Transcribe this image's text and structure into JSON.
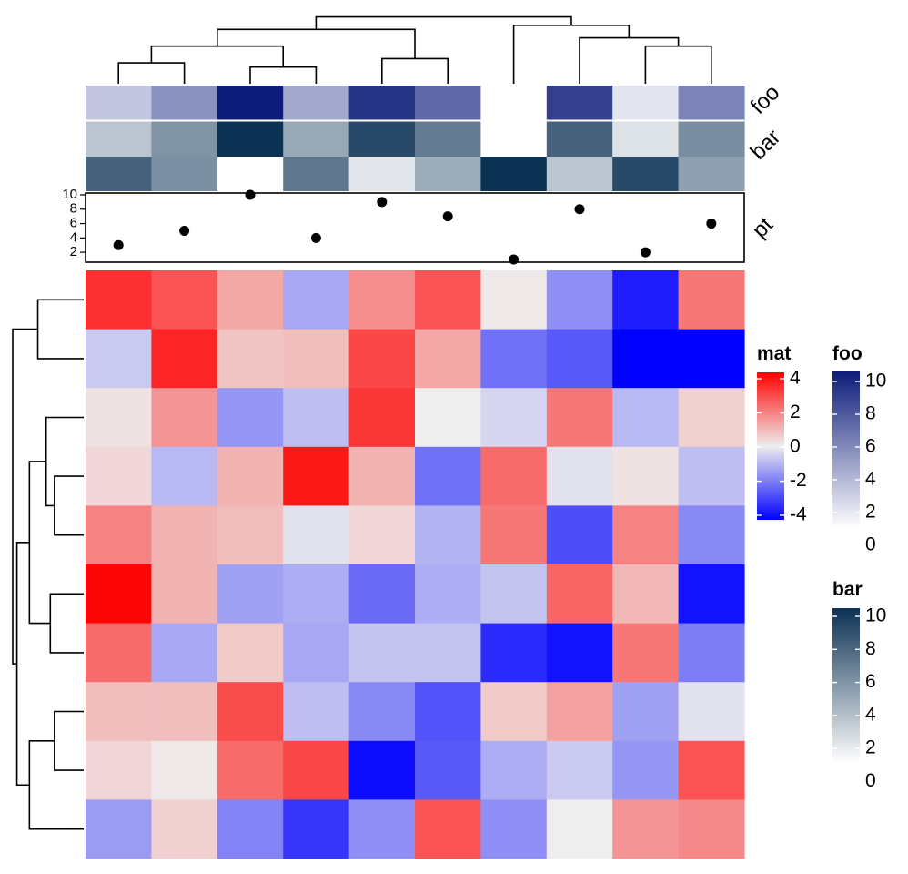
{
  "chart_data": {
    "type": "heatmap",
    "title": "",
    "xlabel": "",
    "ylabel": "",
    "rows": 10,
    "cols": 10,
    "colors": {
      "mat_low": "#0000FF",
      "mat_mid": "#EEEEEE",
      "mat_high": "#FF0000",
      "foo_high": "#0D1C7A",
      "bar_high": "#0B3153",
      "annotation_low": "#FFFFFF"
    },
    "mat_values": [
      [
        3.2,
        2.6,
        1.2,
        -1.2,
        1.6,
        2.6,
        0.1,
        -1.6,
        -3.5,
        2.0
      ],
      [
        -0.6,
        3.4,
        0.7,
        0.8,
        2.8,
        1.2,
        -2.1,
        -2.5,
        -4.0,
        -4.0
      ],
      [
        0.2,
        1.5,
        -1.5,
        -0.8,
        3.1,
        0.0,
        -0.4,
        2.0,
        -0.9,
        0.5
      ],
      [
        0.4,
        -0.9,
        1.0,
        3.6,
        1.0,
        -2.1,
        2.2,
        -0.2,
        0.2,
        -0.8
      ],
      [
        1.8,
        1.0,
        0.8,
        -0.2,
        0.4,
        -1.0,
        2.0,
        -2.7,
        1.8,
        -1.7
      ],
      [
        3.9,
        1.0,
        -1.3,
        -1.1,
        -2.2,
        -1.1,
        -0.7,
        2.3,
        0.9,
        -3.7
      ],
      [
        2.2,
        -1.2,
        0.6,
        -1.2,
        -0.7,
        -0.7,
        -3.3,
        -3.7,
        2.0,
        -1.9
      ],
      [
        0.8,
        0.8,
        2.7,
        -0.8,
        -1.7,
        -2.6,
        0.6,
        1.3,
        -1.3,
        -0.2
      ],
      [
        0.4,
        0.1,
        2.2,
        2.8,
        -3.8,
        -2.5,
        -1.1,
        -0.6,
        -1.5,
        2.6
      ],
      [
        -1.4,
        0.5,
        -1.8,
        -3.1,
        -1.6,
        2.6,
        -1.6,
        0.0,
        1.5,
        1.7
      ]
    ],
    "annotations": {
      "foo": {
        "label": "foo",
        "values": [
          2.5,
          4.8,
          10.0,
          3.8,
          9.0,
          6.6,
          0.0,
          8.4,
          1.2,
          5.4
        ]
      },
      "bar": {
        "label": "bar",
        "values": [
          2.8,
          5.2,
          10.0,
          4.2,
          8.8,
          6.4,
          0.0,
          7.6,
          1.4,
          5.5
        ]
      },
      "bar_row2": [
        7.6,
        5.4,
        0.0,
        6.6,
        1.2,
        4.0,
        10.0,
        2.8,
        8.8,
        4.6
      ],
      "pt": {
        "label": "pt",
        "values": [
          3,
          5,
          10,
          4,
          9,
          7,
          1,
          8,
          2,
          6
        ],
        "ticks": [
          "2",
          "4",
          "6",
          "8",
          "10"
        ],
        "ylim": [
          1,
          10
        ]
      }
    },
    "legends": {
      "mat": {
        "title": "mat",
        "ticks": [
          "4",
          "2",
          "0",
          "-2",
          "-4"
        ]
      },
      "foo": {
        "title": "foo",
        "ticks": [
          "10",
          "8",
          "6",
          "4",
          "2",
          "0"
        ]
      },
      "bar": {
        "title": "bar",
        "ticks": [
          "10",
          "8",
          "6",
          "4",
          "2",
          "0"
        ]
      }
    },
    "column_dendrogram": [
      {
        "a": 0,
        "b": 1,
        "hl": 0,
        "hr": 0,
        "h": 25
      },
      {
        "a": 2,
        "b": 3,
        "hl": 0,
        "hr": 0,
        "h": 20
      },
      {
        "a": 0.5,
        "b": 2.5,
        "hl": 25,
        "hr": 20,
        "h": 45
      },
      {
        "a": 4,
        "b": 5,
        "hl": 0,
        "hr": 0,
        "h": 30
      },
      {
        "a": 1.5,
        "b": 4.5,
        "hl": 45,
        "hr": 30,
        "h": 65
      },
      {
        "a": 8,
        "b": 9,
        "hl": 0,
        "hr": 0,
        "h": 45
      },
      {
        "a": 7,
        "b": 8.5,
        "hl": 0,
        "hr": 45,
        "h": 55
      },
      {
        "a": 6,
        "b": 7.75,
        "hl": 0,
        "hr": 55,
        "h": 70
      },
      {
        "a": 3,
        "b": 6.875,
        "hl": 65,
        "hr": 70,
        "h": 80
      }
    ],
    "row_dendrogram": [
      {
        "a": 0,
        "b": 1,
        "hl": 0,
        "hr": 0,
        "h": 55
      },
      {
        "a": 3,
        "b": 4,
        "hl": 0,
        "hr": 0,
        "h": 35
      },
      {
        "a": 2,
        "b": 3.5,
        "hl": 0,
        "hr": 35,
        "h": 45
      },
      {
        "a": 5,
        "b": 6,
        "hl": 0,
        "hr": 0,
        "h": 40
      },
      {
        "a": 2.75,
        "b": 5.5,
        "hl": 45,
        "hr": 40,
        "h": 65
      },
      {
        "a": 7,
        "b": 8,
        "hl": 0,
        "hr": 0,
        "h": 35
      },
      {
        "a": 7.5,
        "b": 9,
        "hl": 35,
        "hr": 0,
        "h": 65
      },
      {
        "a": 4.125,
        "b": 8.25,
        "hl": 65,
        "hr": 65,
        "h": 80
      },
      {
        "a": 0.5,
        "b": 6.1875,
        "hl": 55,
        "hr": 80,
        "h": 85
      }
    ],
    "dendrogram_height_max": 85
  }
}
